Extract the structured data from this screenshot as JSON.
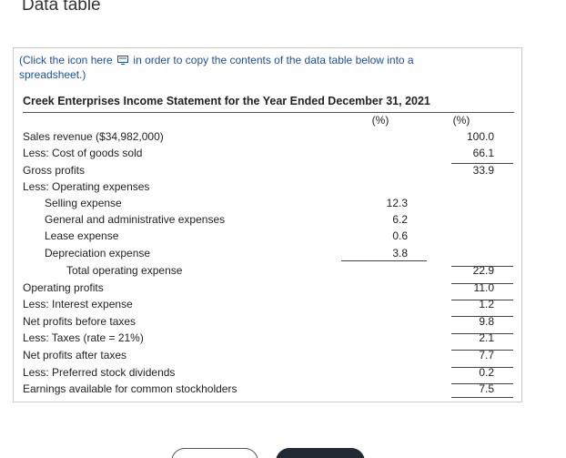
{
  "header": {
    "title": "Data table"
  },
  "copy_note": {
    "prefix": "(Click the icon here",
    "suffix": "in order to copy the contents of the data table below into a spreadsheet.)",
    "icon": "copy-icon"
  },
  "table": {
    "title": "Creek Enterprises Income Statement for the Year Ended December 31, 2021",
    "col_headers": [
      "(%)",
      "(%)"
    ],
    "rows": [
      {
        "label": "Sales revenue ($34,982,000)",
        "col1": "",
        "col2": "100.0"
      },
      {
        "label": "Less: Cost of goods sold",
        "col1": "",
        "col2": "66.1"
      },
      {
        "label": "Gross profits",
        "col1": "",
        "col2": "33.9"
      },
      {
        "label": "Less: Operating expenses",
        "col1": "",
        "col2": ""
      },
      {
        "label": "Selling expense",
        "col1": "12.3",
        "col2": ""
      },
      {
        "label": "General and administrative expenses",
        "col1": "6.2",
        "col2": ""
      },
      {
        "label": "Lease expense",
        "col1": "0.6",
        "col2": ""
      },
      {
        "label": "Depreciation expense",
        "col1": "3.8",
        "col2": ""
      },
      {
        "label": "Total operating expense",
        "col1": "",
        "col2": "22.9"
      },
      {
        "label": "Operating profits",
        "col1": "",
        "col2": "11.0"
      },
      {
        "label": "Less: Interest expense",
        "col1": "",
        "col2": "1.2"
      },
      {
        "label": "Net profits before taxes",
        "col1": "",
        "col2": "9.8"
      },
      {
        "label": "Less: Taxes (rate = 21%)",
        "col1": "",
        "col2": "2.1"
      },
      {
        "label": "Net profits after taxes",
        "col1": "",
        "col2": "7.7"
      },
      {
        "label": "Less: Preferred stock dividends",
        "col1": "",
        "col2": "0.2"
      },
      {
        "label": "Earnings available for common stockholders",
        "col1": "",
        "col2": "7.5"
      }
    ]
  },
  "colors": {
    "link": "#1f4fa3",
    "dark_button": "#222a33"
  }
}
